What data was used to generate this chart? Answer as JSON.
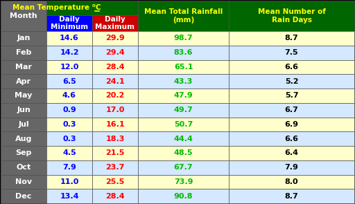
{
  "months": [
    "Jan",
    "Feb",
    "Mar",
    "Apr",
    "May",
    "Jun",
    "Jul",
    "Aug",
    "Sep",
    "Oct",
    "Nov",
    "Dec"
  ],
  "daily_min": [
    "14.6",
    "14.2",
    "12.0",
    "6.5",
    "4.6",
    "0.9",
    "0.3",
    "0.3",
    "4.5",
    "7.9",
    "11.0",
    "13.4"
  ],
  "daily_max": [
    "29.9",
    "29.4",
    "28.4",
    "24.1",
    "20.2",
    "17.0",
    "16.1",
    "18.3",
    "21.5",
    "23.7",
    "25.5",
    "28.4"
  ],
  "rainfall": [
    "98.7",
    "83.6",
    "65.1",
    "43.3",
    "47.9",
    "49.7",
    "50.7",
    "44.4",
    "48.5",
    "67.7",
    "73.9",
    "90.8"
  ],
  "rain_days": [
    "8.7",
    "7.5",
    "6.6",
    "5.2",
    "5.7",
    "6.7",
    "6.9",
    "6.6",
    "6.4",
    "7.9",
    "8.0",
    "8.7"
  ],
  "header_bg": "#006600",
  "header_text": "#FFFF00",
  "min_col_bg": "#0000FF",
  "max_col_bg": "#CC0000",
  "subheader_text": "#FFFFFF",
  "month_col_bg": "#666666",
  "month_text": "#FFFFFF",
  "row_bg_odd": "#FFFFCC",
  "row_bg_even": "#D4E8FF",
  "min_text_color": "#0000FF",
  "max_text_color": "#FF0000",
  "rainfall_text_color": "#00BB00",
  "rain_days_text_color": "#000000",
  "border_color": "#000000",
  "col3_header": "Mean Total Rainfall\n(mm)",
  "col4_header": "Mean Number of\nRain Days"
}
